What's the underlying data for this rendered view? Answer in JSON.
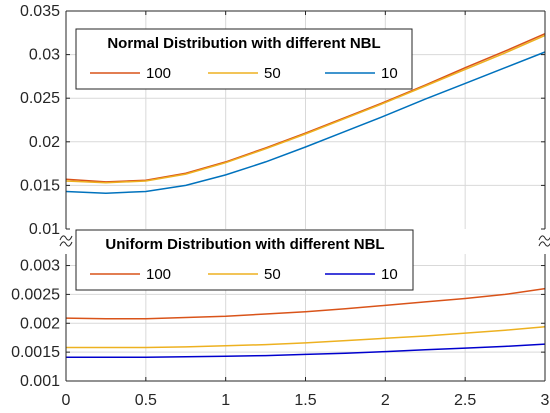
{
  "chart_data": [
    {
      "type": "line",
      "panel": "top",
      "title": "Normal Distribution with different NBL",
      "xlim": [
        0,
        3
      ],
      "ylim": [
        0.01,
        0.035
      ],
      "grid": true,
      "legend_placement": "top",
      "y_ticks": [
        "0.01",
        "0.015",
        "0.02",
        "0.025",
        "0.03",
        "0.035"
      ],
      "x": [
        0,
        0.25,
        0.5,
        0.75,
        1,
        1.25,
        1.5,
        1.75,
        2,
        2.25,
        2.5,
        2.75,
        3
      ],
      "series": [
        {
          "name": "100",
          "color": "#D95319",
          "values": [
            0.0157,
            0.0154,
            0.0156,
            0.0164,
            0.0177,
            0.0193,
            0.021,
            0.0228,
            0.0246,
            0.0265,
            0.0285,
            0.0304,
            0.0324
          ]
        },
        {
          "name": "50",
          "color": "#EDB120",
          "values": [
            0.0155,
            0.0153,
            0.0155,
            0.0163,
            0.0176,
            0.0192,
            0.0209,
            0.0227,
            0.0245,
            0.0264,
            0.0283,
            0.0302,
            0.0322
          ]
        },
        {
          "name": "10",
          "color": "#0072BD",
          "values": [
            0.0143,
            0.0141,
            0.0143,
            0.015,
            0.0162,
            0.0177,
            0.0194,
            0.0212,
            0.023,
            0.0249,
            0.0267,
            0.0285,
            0.0303
          ]
        }
      ]
    },
    {
      "type": "line",
      "panel": "bottom",
      "title": "Uniform Distribution with different NBL",
      "xlim": [
        0,
        3
      ],
      "ylim": [
        0.001,
        0.0032
      ],
      "grid": true,
      "legend_placement": "top",
      "y_ticks": [
        "0.001",
        "0.0015",
        "0.002",
        "0.0025",
        "0.003"
      ],
      "x_ticks": [
        "0",
        "0.5",
        "1",
        "1.5",
        "2",
        "2.5",
        "3"
      ],
      "x": [
        0,
        0.25,
        0.5,
        0.75,
        1,
        1.25,
        1.5,
        1.75,
        2,
        2.25,
        2.5,
        2.75,
        3
      ],
      "series": [
        {
          "name": "100",
          "color": "#D95319",
          "values": [
            0.00209,
            0.00208,
            0.00208,
            0.0021,
            0.00212,
            0.00216,
            0.0022,
            0.00225,
            0.00231,
            0.00237,
            0.00243,
            0.0025,
            0.0026
          ]
        },
        {
          "name": "50",
          "color": "#EDB120",
          "values": [
            0.00158,
            0.00158,
            0.00158,
            0.00159,
            0.00161,
            0.00163,
            0.00166,
            0.0017,
            0.00174,
            0.00178,
            0.00183,
            0.00188,
            0.00194
          ]
        },
        {
          "name": "10",
          "color": "#0000CD",
          "values": [
            0.00141,
            0.00141,
            0.00141,
            0.00142,
            0.00143,
            0.00144,
            0.00146,
            0.00148,
            0.00151,
            0.00154,
            0.00157,
            0.0016,
            0.00164
          ]
        }
      ]
    }
  ]
}
